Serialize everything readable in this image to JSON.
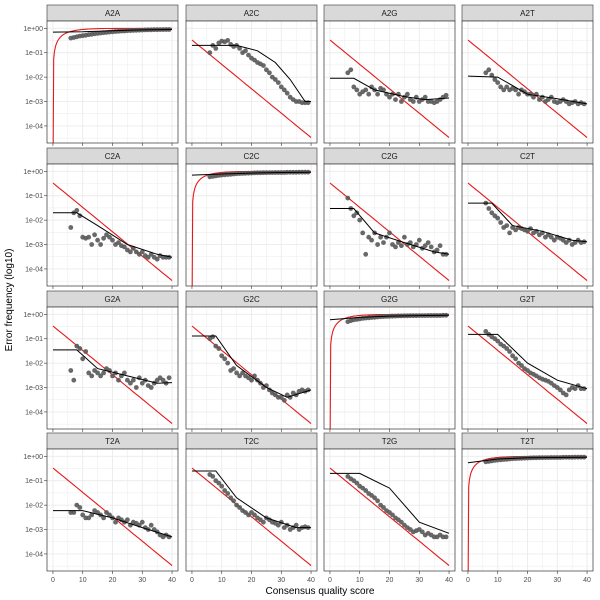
{
  "chart_data": {
    "type": "scatter",
    "title": "",
    "xlabel": "Consensus quality score",
    "ylabel": "Error frequency (log10)",
    "x_scale": "linear",
    "y_scale": "log10",
    "xlim": [
      -2,
      42
    ],
    "ylim": [
      2e-05,
      2
    ],
    "x_ticks": [
      0,
      10,
      20,
      30,
      40
    ],
    "x_tick_labels": [
      "0",
      "10",
      "20",
      "30",
      "40"
    ],
    "y_ticks": [
      1,
      0.1,
      0.01,
      0.001,
      0.0001
    ],
    "y_tick_labels": [
      "1e+00",
      "1e-01",
      "1e-02",
      "1e-03",
      "1e-04"
    ],
    "grid": true,
    "layout": "4x4 facet grid",
    "colors": {
      "points": "#595959",
      "fitted": "#000000",
      "nominal": "#e41a1c",
      "strip": "#d9d9d9",
      "panel_border": "#333333",
      "grid": "#ebebeb"
    },
    "x": [
      6,
      7,
      8,
      9,
      10,
      11,
      12,
      13,
      14,
      15,
      16,
      17,
      18,
      19,
      20,
      21,
      22,
      23,
      24,
      25,
      26,
      27,
      28,
      29,
      30,
      31,
      32,
      33,
      34,
      35,
      36,
      37,
      38,
      39
    ],
    "panels": [
      {
        "label": "A2A",
        "kind": "self",
        "y": [
          0.4,
          0.42,
          0.45,
          0.48,
          0.5,
          0.52,
          0.55,
          0.57,
          0.6,
          0.62,
          0.64,
          0.66,
          0.68,
          0.7,
          0.72,
          0.74,
          0.76,
          0.77,
          0.78,
          0.8,
          0.81,
          0.82,
          0.83,
          0.84,
          0.85,
          0.86,
          0.87,
          0.87,
          0.88,
          0.88,
          0.89,
          0.89,
          0.9,
          0.9
        ],
        "fit": [
          [
            0,
            0.7
          ],
          [
            10,
            0.72
          ],
          [
            20,
            0.8
          ],
          [
            30,
            0.86
          ],
          [
            40,
            0.9
          ]
        ]
      },
      {
        "label": "A2C",
        "kind": "sub",
        "y": [
          0.1,
          0.2,
          0.15,
          0.25,
          0.3,
          0.28,
          0.32,
          0.22,
          0.18,
          0.2,
          0.15,
          0.1,
          0.12,
          0.08,
          0.06,
          0.05,
          0.04,
          0.035,
          0.03,
          0.02,
          0.015,
          0.01,
          0.008,
          0.006,
          0.004,
          0.003,
          0.0022,
          0.0015,
          0.0012,
          0.001,
          0.001,
          0.0009,
          0.0009,
          0.0009
        ],
        "fit": [
          [
            0,
            0.2
          ],
          [
            15,
            0.2
          ],
          [
            22,
            0.12
          ],
          [
            28,
            0.04
          ],
          [
            33,
            0.008
          ],
          [
            38,
            0.001
          ],
          [
            40,
            0.001
          ]
        ]
      },
      {
        "label": "A2G",
        "kind": "sub",
        "y": [
          0.015,
          0.02,
          0.004,
          0.003,
          0.002,
          0.0025,
          0.003,
          0.002,
          0.004,
          0.003,
          0.002,
          0.0035,
          0.003,
          0.002,
          0.0015,
          0.002,
          0.0012,
          0.002,
          0.001,
          0.0015,
          0.002,
          0.0012,
          0.001,
          0.0015,
          0.001,
          0.0012,
          0.0015,
          0.001,
          0.001,
          0.0009,
          0.001,
          0.0012,
          0.0015,
          0.0018
        ],
        "fit": [
          [
            0,
            0.009
          ],
          [
            8,
            0.009
          ],
          [
            15,
            0.003
          ],
          [
            25,
            0.0016
          ],
          [
            32,
            0.0012
          ],
          [
            40,
            0.0014
          ]
        ]
      },
      {
        "label": "A2T",
        "kind": "sub",
        "y": [
          0.015,
          0.02,
          0.012,
          0.008,
          0.006,
          0.004,
          0.003,
          0.004,
          0.003,
          0.0035,
          0.003,
          0.002,
          0.003,
          0.0025,
          0.002,
          0.002,
          0.0015,
          0.002,
          0.0012,
          0.0015,
          0.001,
          0.0012,
          0.0015,
          0.001,
          0.0009,
          0.001,
          0.0012,
          0.001,
          0.0008,
          0.0009,
          0.001,
          0.0008,
          0.0009,
          0.0008
        ],
        "fit": [
          [
            0,
            0.011
          ],
          [
            10,
            0.01
          ],
          [
            20,
            0.002
          ],
          [
            30,
            0.0013
          ],
          [
            40,
            0.0008
          ]
        ]
      },
      {
        "label": "C2A",
        "kind": "sub",
        "y": [
          0.005,
          0.02,
          0.025,
          0.015,
          0.002,
          0.0018,
          0.002,
          0.001,
          0.0025,
          0.0015,
          0.001,
          0.0018,
          0.0025,
          0.002,
          0.0015,
          0.001,
          0.0012,
          0.0009,
          0.0008,
          0.0006,
          0.0005,
          0.0007,
          0.0005,
          0.0004,
          0.0005,
          0.00035,
          0.0003,
          0.0004,
          0.0003,
          0.00025,
          0.00035,
          0.0003,
          0.0003,
          0.0003
        ],
        "fit": [
          [
            0,
            0.02
          ],
          [
            8,
            0.02
          ],
          [
            15,
            0.006
          ],
          [
            25,
            0.001
          ],
          [
            35,
            0.0004
          ],
          [
            40,
            0.0003
          ]
        ]
      },
      {
        "label": "C2C",
        "kind": "self",
        "y": [
          0.6,
          0.62,
          0.65,
          0.68,
          0.7,
          0.72,
          0.74,
          0.76,
          0.78,
          0.8,
          0.81,
          0.82,
          0.83,
          0.84,
          0.85,
          0.86,
          0.87,
          0.87,
          0.88,
          0.88,
          0.89,
          0.89,
          0.9,
          0.9,
          0.9,
          0.9,
          0.91,
          0.91,
          0.91,
          0.91,
          0.92,
          0.92,
          0.92,
          0.92
        ],
        "fit": [
          [
            0,
            0.7
          ],
          [
            10,
            0.78
          ],
          [
            20,
            0.85
          ],
          [
            30,
            0.9
          ],
          [
            40,
            0.92
          ]
        ]
      },
      {
        "label": "C2G",
        "kind": "sub",
        "y": [
          0.08,
          0.03,
          0.015,
          0.02,
          0.01,
          0.003,
          0.0004,
          0.002,
          0.0015,
          0.003,
          0.001,
          0.002,
          0.0012,
          0.002,
          0.003,
          0.001,
          0.0008,
          0.0012,
          0.0009,
          0.002,
          0.001,
          0.0012,
          0.0008,
          0.001,
          0.0015,
          0.0007,
          0.0009,
          0.0012,
          0.0008,
          0.0005,
          0.0006,
          0.0009,
          0.0004,
          0.0004
        ],
        "fit": [
          [
            0,
            0.03
          ],
          [
            8,
            0.03
          ],
          [
            15,
            0.003
          ],
          [
            25,
            0.0012
          ],
          [
            35,
            0.0005
          ],
          [
            40,
            0.0004
          ]
        ]
      },
      {
        "label": "C2T",
        "kind": "sub",
        "y": [
          0.05,
          0.03,
          0.02,
          0.015,
          0.012,
          0.008,
          0.005,
          0.006,
          0.003,
          0.005,
          0.004,
          0.005,
          0.0045,
          0.004,
          0.0035,
          0.0045,
          0.003,
          0.0035,
          0.0025,
          0.003,
          0.002,
          0.0025,
          0.002,
          0.0015,
          0.002,
          0.0018,
          0.0015,
          0.0012,
          0.0015,
          0.001,
          0.0012,
          0.0015,
          0.0012,
          0.0013
        ],
        "fit": [
          [
            0,
            0.05
          ],
          [
            8,
            0.05
          ],
          [
            15,
            0.006
          ],
          [
            25,
            0.0035
          ],
          [
            35,
            0.0015
          ],
          [
            40,
            0.0013
          ]
        ]
      },
      {
        "label": "G2A",
        "kind": "sub",
        "y": [
          0.005,
          0.002,
          0.05,
          0.04,
          0.015,
          0.03,
          0.004,
          0.003,
          0.005,
          0.004,
          0.003,
          0.004,
          0.006,
          0.005,
          0.003,
          0.004,
          0.002,
          0.003,
          0.004,
          0.002,
          0.0015,
          0.002,
          0.001,
          0.0025,
          0.0015,
          0.002,
          0.0012,
          0.001,
          0.0015,
          0.002,
          0.0025,
          0.002,
          0.0015,
          0.0025
        ],
        "fit": [
          [
            0,
            0.035
          ],
          [
            8,
            0.035
          ],
          [
            15,
            0.006
          ],
          [
            25,
            0.003
          ],
          [
            35,
            0.0015
          ],
          [
            40,
            0.0016
          ]
        ]
      },
      {
        "label": "G2C",
        "kind": "sub",
        "y": [
          0.1,
          0.12,
          0.05,
          0.04,
          0.02,
          0.015,
          0.01,
          0.005,
          0.006,
          0.004,
          0.003,
          0.004,
          0.003,
          0.0025,
          0.002,
          0.003,
          0.002,
          0.0015,
          0.001,
          0.0012,
          0.0008,
          0.0006,
          0.0005,
          0.0004,
          0.0004,
          0.0003,
          0.0005,
          0.0004,
          0.0006,
          0.0005,
          0.0007,
          0.0008,
          0.0007,
          0.0008
        ],
        "fit": [
          [
            0,
            0.13
          ],
          [
            8,
            0.13
          ],
          [
            15,
            0.008
          ],
          [
            25,
            0.001
          ],
          [
            32,
            0.0004
          ],
          [
            40,
            0.0008
          ]
        ]
      },
      {
        "label": "G2G",
        "kind": "self",
        "y": [
          0.5,
          0.55,
          0.6,
          0.62,
          0.65,
          0.68,
          0.7,
          0.72,
          0.74,
          0.76,
          0.78,
          0.8,
          0.81,
          0.82,
          0.83,
          0.84,
          0.85,
          0.86,
          0.86,
          0.87,
          0.87,
          0.88,
          0.88,
          0.88,
          0.89,
          0.89,
          0.89,
          0.9,
          0.9,
          0.9,
          0.9,
          0.9,
          0.91,
          0.91
        ],
        "fit": [
          [
            0,
            0.6
          ],
          [
            10,
            0.75
          ],
          [
            20,
            0.85
          ],
          [
            30,
            0.89
          ],
          [
            40,
            0.91
          ]
        ]
      },
      {
        "label": "G2T",
        "kind": "sub",
        "y": [
          0.2,
          0.15,
          0.12,
          0.1,
          0.08,
          0.06,
          0.05,
          0.04,
          0.03,
          0.02,
          0.015,
          0.01,
          0.008,
          0.006,
          0.005,
          0.004,
          0.0035,
          0.003,
          0.0025,
          0.0022,
          0.002,
          0.0018,
          0.0015,
          0.0012,
          0.001,
          0.0008,
          0.0006,
          0.0005,
          0.0008,
          0.001,
          0.0009,
          0.0012,
          0.0009,
          0.0009
        ],
        "fit": [
          [
            0,
            0.15
          ],
          [
            10,
            0.15
          ],
          [
            20,
            0.01
          ],
          [
            30,
            0.002
          ],
          [
            40,
            0.0009
          ]
        ]
      },
      {
        "label": "T2A",
        "kind": "sub",
        "y": [
          0.005,
          0.005,
          0.01,
          0.008,
          0.004,
          0.003,
          0.003,
          0.004,
          0.006,
          0.005,
          0.004,
          0.003,
          0.005,
          0.004,
          0.003,
          0.002,
          0.003,
          0.0025,
          0.002,
          0.0025,
          0.0015,
          0.002,
          0.0018,
          0.0015,
          0.002,
          0.0012,
          0.001,
          0.0015,
          0.001,
          0.0008,
          0.0006,
          0.0005,
          0.0006,
          0.0005
        ],
        "fit": [
          [
            0,
            0.006
          ],
          [
            10,
            0.006
          ],
          [
            20,
            0.003
          ],
          [
            30,
            0.0012
          ],
          [
            40,
            0.0005
          ]
        ]
      },
      {
        "label": "T2C",
        "kind": "sub",
        "y": [
          0.18,
          0.15,
          0.1,
          0.08,
          0.06,
          0.04,
          0.03,
          0.02,
          0.015,
          0.01,
          0.008,
          0.006,
          0.005,
          0.004,
          0.005,
          0.004,
          0.003,
          0.0025,
          0.002,
          0.003,
          0.0025,
          0.002,
          0.0018,
          0.0015,
          0.002,
          0.0012,
          0.0015,
          0.001,
          0.0012,
          0.0015,
          0.001,
          0.0012,
          0.0013,
          0.0012
        ],
        "fit": [
          [
            0,
            0.25
          ],
          [
            8,
            0.25
          ],
          [
            15,
            0.02
          ],
          [
            25,
            0.003
          ],
          [
            35,
            0.0012
          ],
          [
            40,
            0.0012
          ]
        ]
      },
      {
        "label": "T2G",
        "kind": "sub",
        "y": [
          0.15,
          0.12,
          0.1,
          0.08,
          0.06,
          0.05,
          0.04,
          0.03,
          0.025,
          0.02,
          0.015,
          0.01,
          0.008,
          0.006,
          0.005,
          0.004,
          0.003,
          0.0025,
          0.002,
          0.0015,
          0.0012,
          0.001,
          0.0008,
          0.0009,
          0.001,
          0.0008,
          0.0006,
          0.0007,
          0.0006,
          0.0005,
          0.0005,
          0.0006,
          0.0005,
          0.0005
        ],
        "fit": [
          [
            0,
            0.2
          ],
          [
            10,
            0.2
          ],
          [
            20,
            0.05
          ],
          [
            30,
            0.002
          ],
          [
            40,
            0.0007
          ]
        ]
      },
      {
        "label": "T2T",
        "kind": "self",
        "y": [
          0.6,
          0.62,
          0.65,
          0.68,
          0.7,
          0.72,
          0.74,
          0.76,
          0.78,
          0.8,
          0.81,
          0.82,
          0.83,
          0.84,
          0.85,
          0.86,
          0.87,
          0.87,
          0.88,
          0.88,
          0.89,
          0.89,
          0.9,
          0.9,
          0.9,
          0.9,
          0.91,
          0.91,
          0.91,
          0.91,
          0.92,
          0.92,
          0.92,
          0.92
        ],
        "fit": [
          [
            0,
            0.55
          ],
          [
            10,
            0.78
          ],
          [
            20,
            0.87
          ],
          [
            30,
            0.9
          ],
          [
            40,
            0.92
          ]
        ]
      }
    ]
  }
}
